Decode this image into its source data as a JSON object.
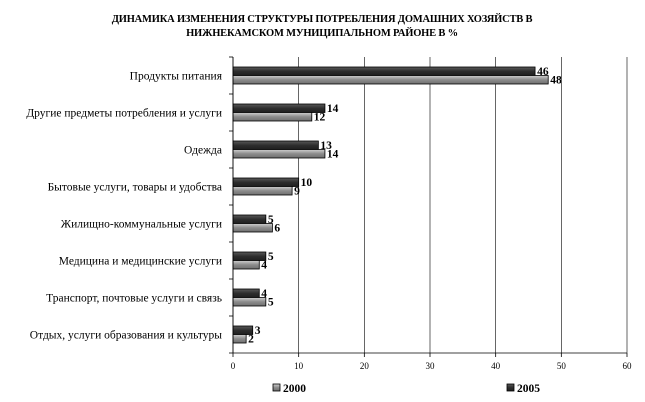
{
  "chart_data": {
    "type": "bar",
    "orientation": "horizontal",
    "title": [
      "ДИНАМИКА ИЗМЕНЕНИЯ СТРУКТУРЫ ПОТРЕБЛЕНИЯ ДОМАШНИХ ХОЗЯЙСТВ В",
      "НИЖНЕКАМСКОМ МУНИЦИПАЛЬНОМ РАЙОНЕ В %"
    ],
    "categories": [
      "Продукты питания",
      "Другие предметы потребления и услуги",
      "Одежда",
      "Бытовые услуги, товары и удобства",
      "Жилищно-коммунальные услуги",
      "Медицина и медицинские услуги",
      "Транспорт, почтовые услуги и связь",
      "Отдых, услуги образования и культуры"
    ],
    "series": [
      {
        "name": "2005",
        "color": "#3a3a3a",
        "values": [
          46,
          14,
          13,
          10,
          5,
          5,
          4,
          3
        ],
        "labels": [
          "46",
          "14",
          "13",
          "10",
          "5",
          "5",
          "4",
          "3"
        ]
      },
      {
        "name": "2000",
        "color": "#8c8c8c",
        "values": [
          48,
          12,
          14,
          9,
          6,
          4,
          5,
          2
        ],
        "labels": [
          "48",
          "12",
          "14",
          "9",
          "6",
          "4",
          "5",
          "2"
        ]
      }
    ],
    "xlim": [
      0,
      60
    ],
    "xticks": [
      "0",
      "10",
      "20",
      "30",
      "40",
      "50",
      "60"
    ],
    "grid": true,
    "legend_position": "bottom",
    "legend_order": [
      "2000",
      "2005"
    ]
  }
}
